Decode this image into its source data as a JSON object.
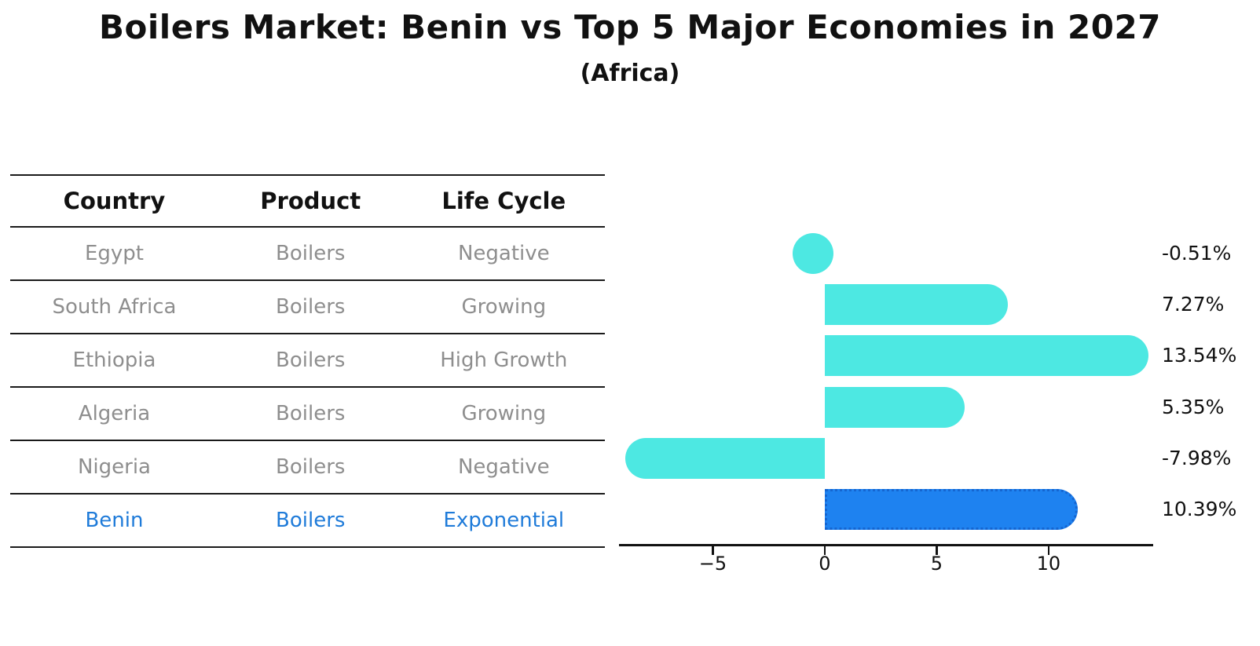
{
  "title": "Boilers Market: Benin vs Top 5 Major Economies in 2027",
  "subtitle": "(Africa)",
  "table": {
    "headers": [
      "Country",
      "Product",
      "Life Cycle"
    ],
    "rows": [
      {
        "country": "Egypt",
        "product": "Boilers",
        "life_cycle": "Negative",
        "highlight": false
      },
      {
        "country": "South Africa",
        "product": "Boilers",
        "life_cycle": "Growing",
        "highlight": false
      },
      {
        "country": "Ethiopia",
        "product": "Boilers",
        "life_cycle": "High Growth",
        "highlight": false
      },
      {
        "country": "Algeria",
        "product": "Boilers",
        "life_cycle": "Growing",
        "highlight": false
      },
      {
        "country": "Nigeria",
        "product": "Boilers",
        "life_cycle": "Negative",
        "highlight": false
      },
      {
        "country": "Benin",
        "product": "Boilers",
        "life_cycle": "Exponential",
        "highlight": true
      }
    ]
  },
  "chart_data": {
    "type": "bar",
    "orientation": "horizontal",
    "categories": [
      "Egypt",
      "South Africa",
      "Ethiopia",
      "Algeria",
      "Nigeria",
      "Benin"
    ],
    "values": [
      -0.51,
      7.27,
      13.54,
      5.35,
      -7.98,
      10.39
    ],
    "value_labels": [
      "-0.51%",
      "7.27%",
      "13.54%",
      "5.35%",
      "-7.98%",
      "10.39%"
    ],
    "highlight_index": 5,
    "xlim": [
      -9.19,
      14.67
    ],
    "xticks": [
      -5,
      0,
      5,
      10
    ],
    "xtick_labels": [
      "−5",
      "0",
      "5",
      "10"
    ],
    "grid": false,
    "legend": false,
    "title": "Boilers Market: Benin vs Top 5 Major Economies in 2027",
    "xlabel": "",
    "ylabel": ""
  },
  "colors": {
    "bar": "#4DE8E2",
    "highlight_bar": "#1E82F0",
    "highlight_bar_border": "#1565D0",
    "highlight_text": "#1F7BD9",
    "table_text": "#8e8e8e",
    "axis": "#111111"
  }
}
